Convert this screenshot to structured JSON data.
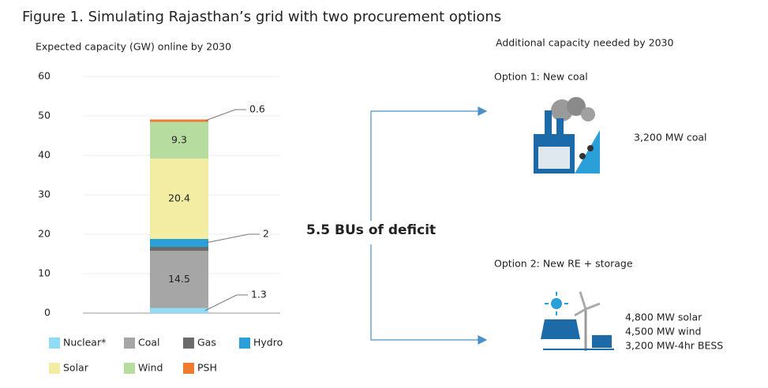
{
  "figure_title": "Figure 1. Simulating Rajasthan’s grid with two procurement options",
  "chart_data": {
    "type": "stacked-bar",
    "subtitle": "Expected capacity (GW) online by 2030",
    "categories": [
      null
    ],
    "series": [
      {
        "name": "Nuclear*",
        "color": "#8fdcf4",
        "values": [
          1.3
        ]
      },
      {
        "name": "Coal",
        "color": "#a6a6a6",
        "values": [
          14.5
        ]
      },
      {
        "name": "Gas",
        "color": "#6b6b6b",
        "values": [
          1
        ]
      },
      {
        "name": "Hydro",
        "color": "#2a9fd8",
        "values": [
          2
        ]
      },
      {
        "name": "Solar",
        "color": "#f2eda2",
        "values": [
          20.4
        ]
      },
      {
        "name": "Wind",
        "color": "#b6dca0",
        "values": [
          9.3
        ]
      },
      {
        "name": "PSH",
        "color": "#ee7b30",
        "values": [
          0.6
        ]
      }
    ],
    "ylim": [
      0,
      60
    ],
    "yticks": [
      0,
      10,
      20,
      30,
      40,
      50,
      60
    ],
    "grid": true
  },
  "diagram": {
    "deficit": "5.5 BUs of deficit",
    "heading": "Additional capacity needed by 2030",
    "options": [
      {
        "label": "Option 1: New coal",
        "details": [
          "3,200 MW coal"
        ]
      },
      {
        "label": "Option 2: New RE + storage",
        "details": [
          "4,800 MW solar",
          "4,500 MW wind",
          "3,200 MW-4hr BESS"
        ]
      }
    ]
  }
}
